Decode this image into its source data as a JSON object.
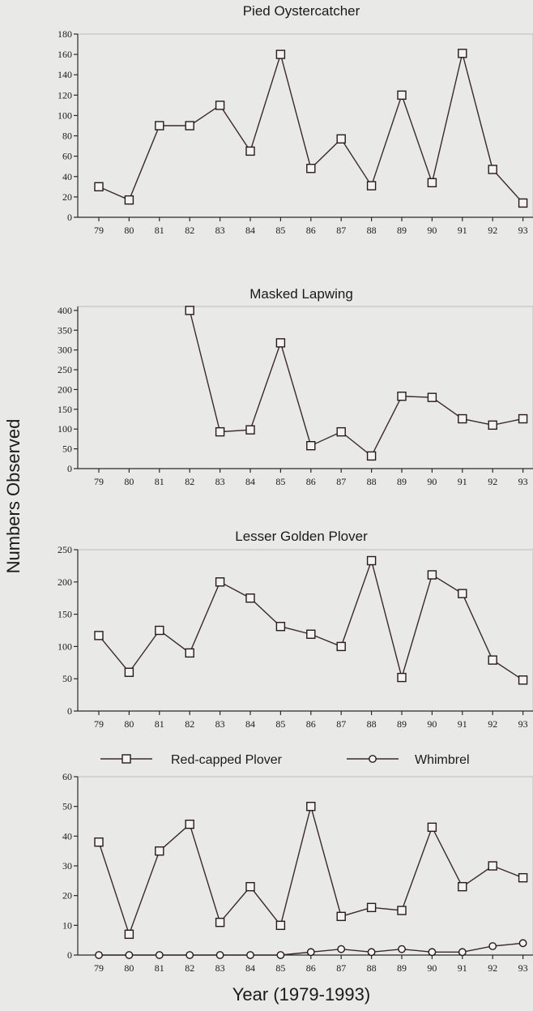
{
  "figure": {
    "ylabel": "Numbers Observed",
    "xlabel": "Year (1979-1993)"
  },
  "chart_data": [
    {
      "type": "line",
      "title": "Pied Oystercatcher",
      "categories": [
        "79",
        "80",
        "81",
        "82",
        "83",
        "84",
        "85",
        "86",
        "87",
        "88",
        "89",
        "90",
        "91",
        "92",
        "93"
      ],
      "yticks": [
        0,
        20,
        40,
        60,
        80,
        100,
        120,
        140,
        160,
        180
      ],
      "ylim": [
        0,
        180
      ],
      "series": [
        {
          "marker": "square",
          "values": [
            30,
            17,
            90,
            90,
            110,
            65,
            160,
            48,
            77,
            31,
            120,
            34,
            161,
            47,
            14
          ]
        }
      ]
    },
    {
      "type": "line",
      "title": "Masked Lapwing",
      "categories": [
        "79",
        "80",
        "81",
        "82",
        "83",
        "84",
        "85",
        "86",
        "87",
        "88",
        "89",
        "90",
        "91",
        "92",
        "93"
      ],
      "yticks": [
        0,
        50,
        100,
        150,
        200,
        250,
        300,
        350,
        400
      ],
      "ylim": [
        0,
        410
      ],
      "series": [
        {
          "marker": "square",
          "values": [
            null,
            null,
            null,
            400,
            93,
            98,
            318,
            58,
            93,
            32,
            183,
            180,
            126,
            110,
            126
          ]
        }
      ]
    },
    {
      "type": "line",
      "title": "Lesser Golden Plover",
      "categories": [
        "79",
        "80",
        "81",
        "82",
        "83",
        "84",
        "85",
        "86",
        "87",
        "88",
        "89",
        "90",
        "91",
        "92",
        "93"
      ],
      "yticks": [
        0,
        50,
        100,
        150,
        200,
        250
      ],
      "ylim": [
        0,
        250
      ],
      "series": [
        {
          "marker": "square",
          "values": [
            117,
            60,
            125,
            90,
            200,
            175,
            131,
            119,
            100,
            233,
            52,
            211,
            182,
            79,
            48
          ]
        }
      ]
    },
    {
      "type": "line",
      "title": "",
      "categories": [
        "79",
        "80",
        "81",
        "82",
        "83",
        "84",
        "85",
        "86",
        "87",
        "88",
        "89",
        "90",
        "91",
        "92",
        "93"
      ],
      "yticks": [
        0,
        10,
        20,
        30,
        40,
        50,
        60
      ],
      "ylim": [
        0,
        60
      ],
      "legend": "top",
      "series": [
        {
          "name": "Red-capped Plover",
          "marker": "square",
          "values": [
            38,
            7,
            35,
            44,
            11,
            23,
            10,
            50,
            13,
            16,
            15,
            43,
            23,
            30,
            26
          ]
        },
        {
          "name": "Whimbrel",
          "marker": "circle",
          "values": [
            0,
            0,
            0,
            0,
            0,
            0,
            0,
            1,
            2,
            1,
            2,
            1,
            1,
            3,
            4
          ]
        }
      ]
    }
  ]
}
